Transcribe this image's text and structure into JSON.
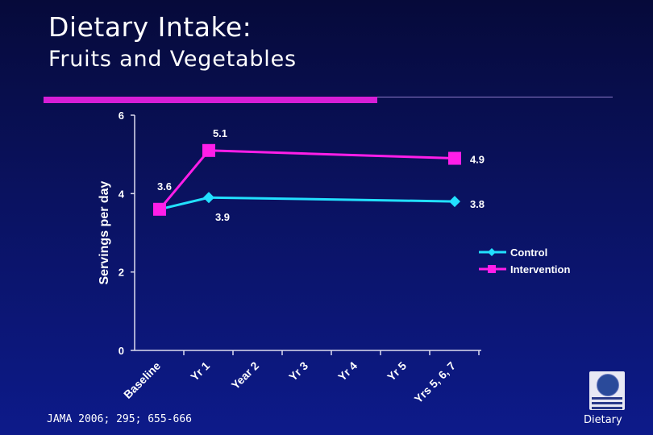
{
  "slide": {
    "title": "Dietary Intake:",
    "subtitle": "Fruits and Vegetables",
    "citation": "JAMA 2006; 295; 655-666",
    "footer": "Dietary",
    "logo": "journal-logo"
  },
  "colors": {
    "control": "#22e0ff",
    "intervention": "#ff1ee8",
    "axis": "#dcdcf0",
    "text": "#ffffff",
    "accent_bar": "#d61ed6"
  },
  "chart_data": {
    "type": "line",
    "title": "",
    "xlabel": "",
    "ylabel": "Servings per day",
    "categories": [
      "Baseline",
      "Yr 1",
      "Year 2",
      "Yr 3",
      "Yr 4",
      "Yr 5",
      "Yrs 5, 6, 7"
    ],
    "ylim": [
      0,
      6
    ],
    "yticks": [
      "0",
      "2",
      "4",
      "6"
    ],
    "grid": false,
    "legend_position": "right",
    "series": [
      {
        "name": "Control",
        "marker": "diamond",
        "points": [
          {
            "category": "Baseline",
            "value": 3.6,
            "label": null
          },
          {
            "category": "Yr 1",
            "value": 3.9,
            "label": "3.9"
          },
          {
            "category": "Yrs 5, 6, 7",
            "value": 3.8,
            "label": "3.8"
          }
        ]
      },
      {
        "name": "Intervention",
        "marker": "square",
        "points": [
          {
            "category": "Baseline",
            "value": 3.6,
            "label": "3.6"
          },
          {
            "category": "Yr 1",
            "value": 5.1,
            "label": "5.1"
          },
          {
            "category": "Yrs 5, 6, 7",
            "value": 4.9,
            "label": "4.9"
          }
        ]
      }
    ]
  }
}
